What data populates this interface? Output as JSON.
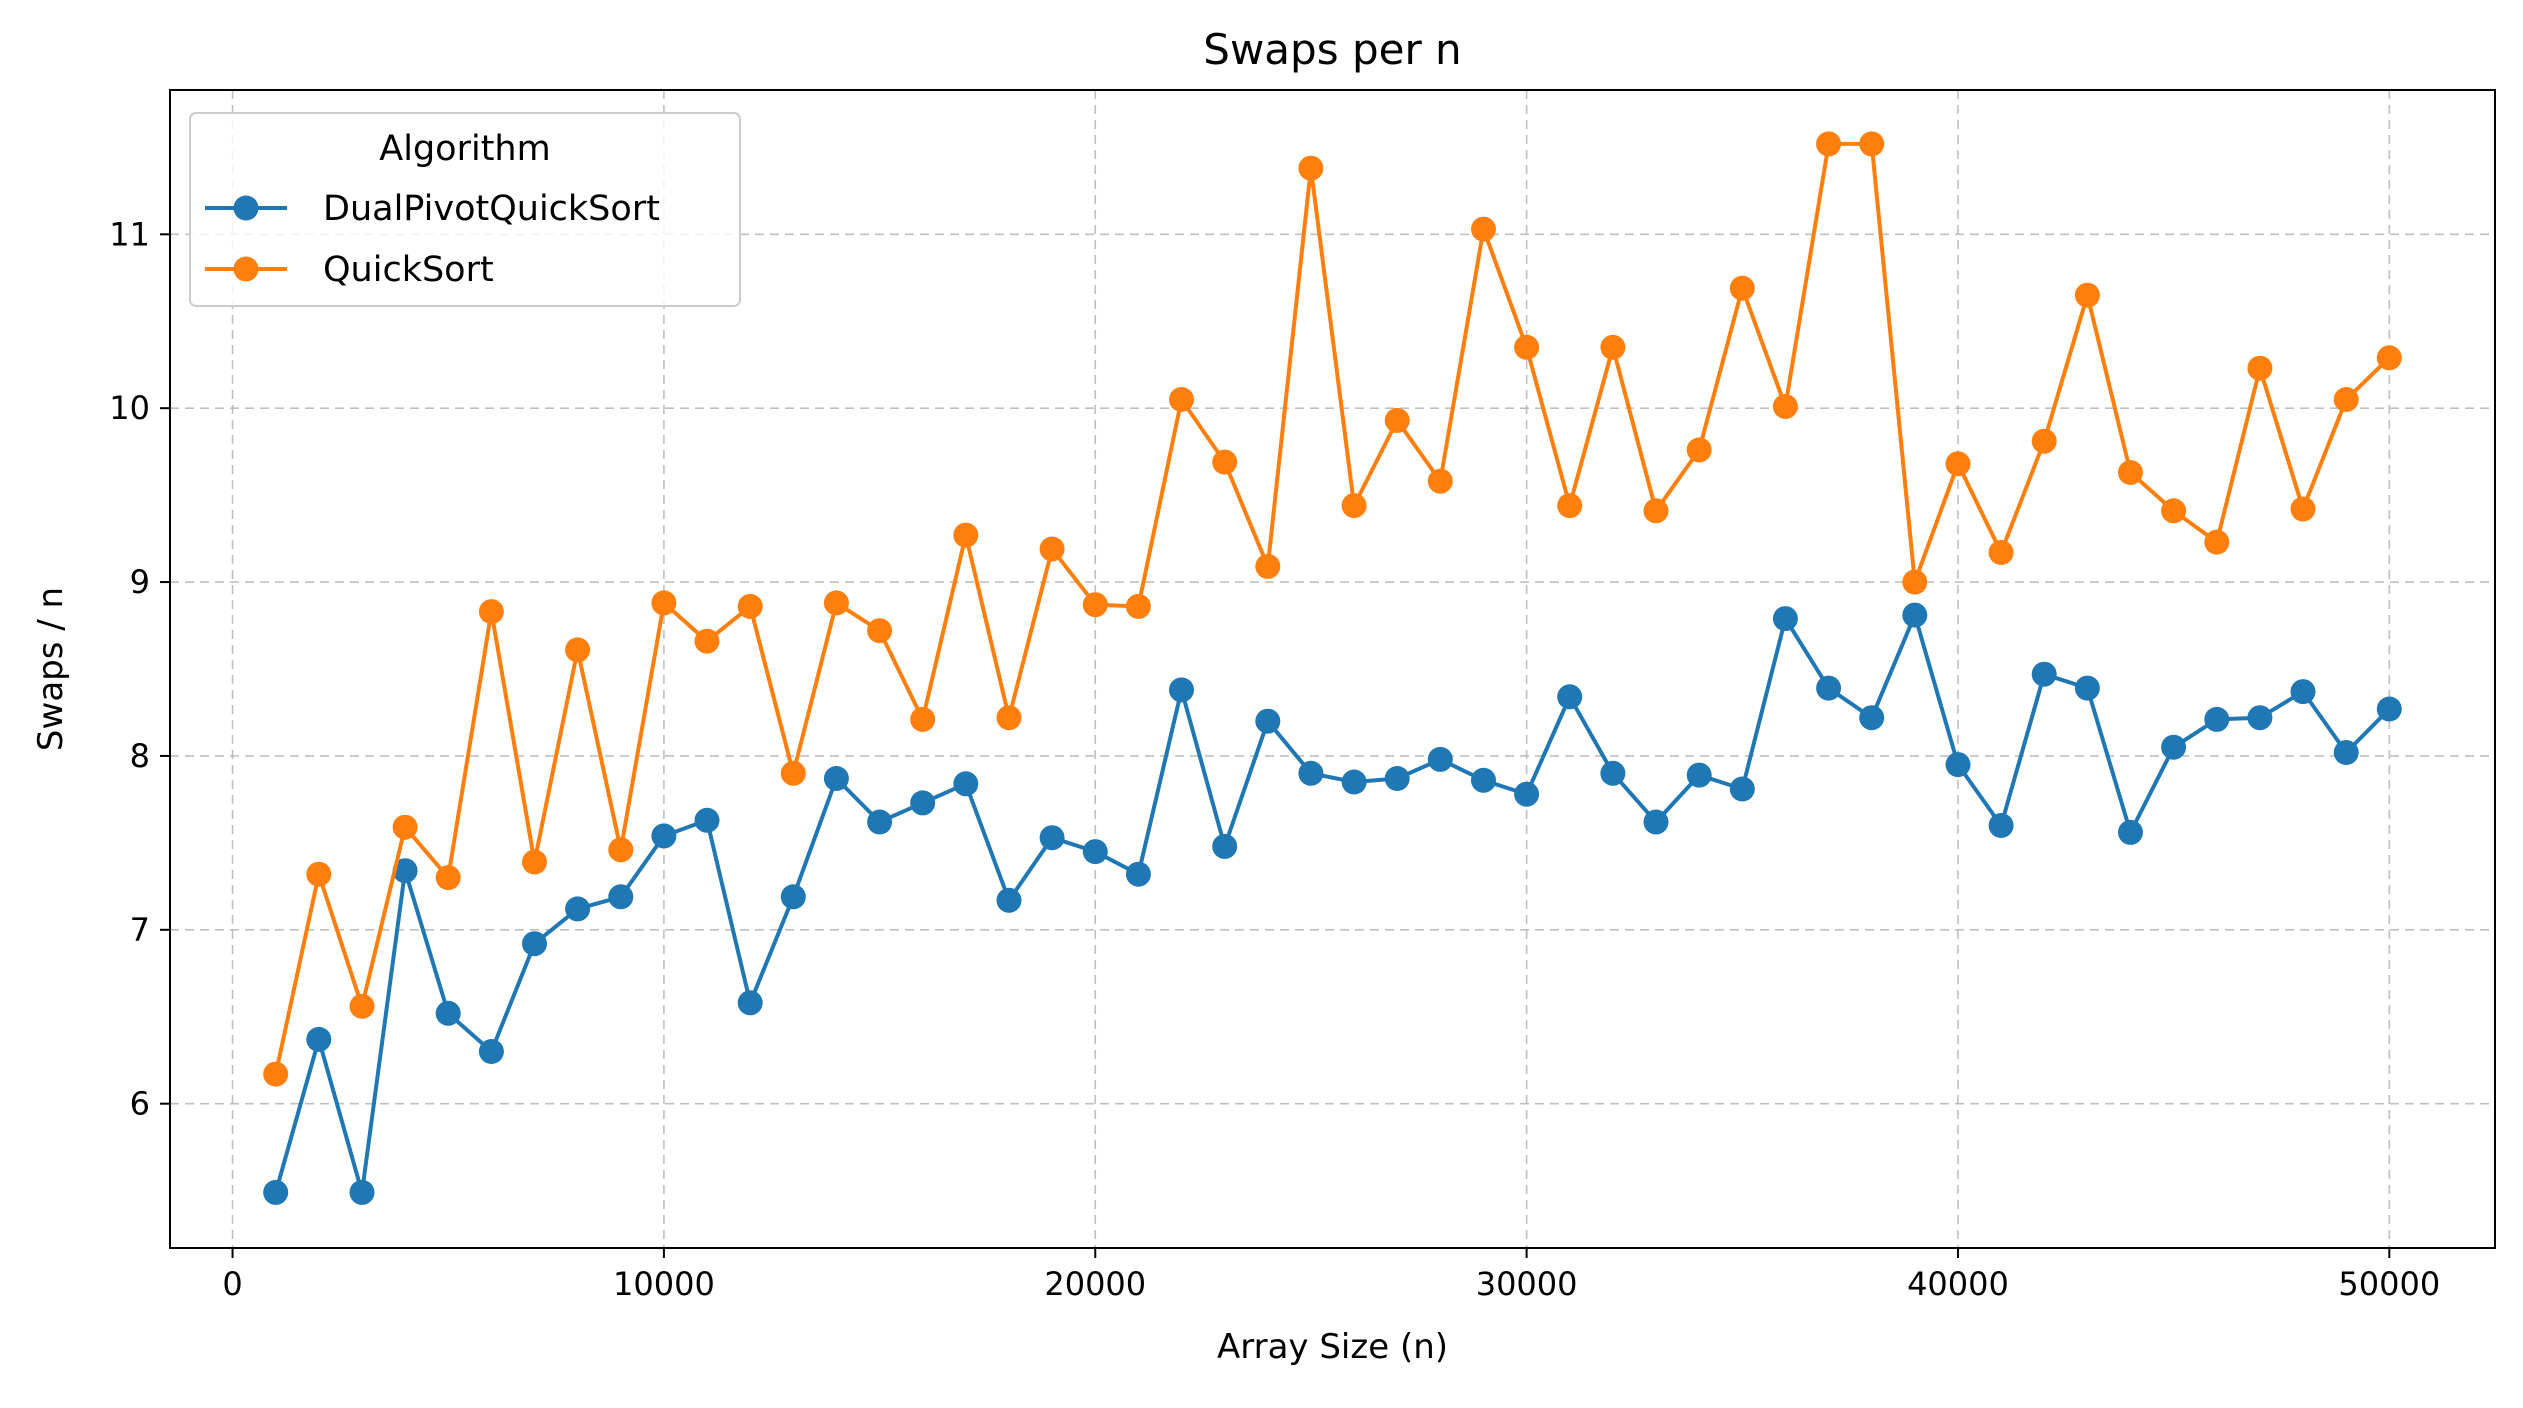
{
  "chart_data": {
    "type": "line",
    "title": "Swaps per n",
    "xlabel": "Array Size (n)",
    "ylabel": "Swaps / n",
    "xlim": [
      -1450,
      52450
    ],
    "ylim": [
      5.17,
      11.83
    ],
    "xticks": [
      0,
      10000,
      20000,
      30000,
      40000,
      50000
    ],
    "xtick_labels": [
      "0",
      "10000",
      "20000",
      "30000",
      "40000",
      "50000"
    ],
    "yticks": [
      6,
      7,
      8,
      9,
      10,
      11
    ],
    "ytick_labels": [
      "6",
      "7",
      "8",
      "9",
      "10",
      "11"
    ],
    "grid": true,
    "legend": {
      "title": "Algorithm",
      "placement": "top-left"
    },
    "x": [
      1000,
      2000,
      3000,
      4000,
      5000,
      6000,
      7000,
      8000,
      9000,
      10000,
      11000,
      12000,
      13000,
      14000,
      15000,
      16000,
      17000,
      18000,
      19000,
      20000,
      21000,
      22000,
      23000,
      24000,
      25000,
      26000,
      27000,
      28000,
      29000,
      30000,
      31000,
      32000,
      33000,
      34000,
      35000,
      36000,
      37000,
      38000,
      39000,
      40000,
      41000,
      42000,
      43000,
      44000,
      45000,
      46000,
      47000,
      48000,
      49000,
      50000
    ],
    "series": [
      {
        "name": "DualPivotQuickSort",
        "color": "#1f77b4",
        "values": [
          5.49,
          6.37,
          5.49,
          7.34,
          6.52,
          6.3,
          6.92,
          7.12,
          7.19,
          7.54,
          7.63,
          6.58,
          7.19,
          7.87,
          7.62,
          7.73,
          7.84,
          7.17,
          7.53,
          7.45,
          7.32,
          8.38,
          7.48,
          8.2,
          7.9,
          7.85,
          7.87,
          7.98,
          7.86,
          7.78,
          8.34,
          7.9,
          7.62,
          7.89,
          7.81,
          8.79,
          8.39,
          8.22,
          8.81,
          7.95,
          7.6,
          8.47,
          8.39,
          7.56,
          8.05,
          8.21,
          8.22,
          8.37,
          8.02,
          8.27
        ]
      },
      {
        "name": "QuickSort",
        "color": "#ff7f0e",
        "values": [
          6.17,
          7.32,
          6.56,
          7.59,
          7.3,
          8.83,
          7.39,
          8.61,
          7.46,
          8.88,
          8.66,
          8.86,
          7.9,
          8.88,
          8.72,
          8.21,
          9.27,
          8.22,
          9.19,
          8.87,
          8.86,
          10.05,
          9.69,
          9.09,
          11.38,
          9.44,
          9.93,
          9.58,
          11.03,
          10.35,
          9.44,
          10.35,
          9.41,
          9.76,
          10.69,
          10.01,
          11.52,
          11.52,
          9.0,
          9.68,
          9.17,
          9.81,
          10.65,
          9.63,
          9.41,
          9.23,
          10.23,
          9.42,
          10.05,
          10.29
        ]
      }
    ]
  }
}
